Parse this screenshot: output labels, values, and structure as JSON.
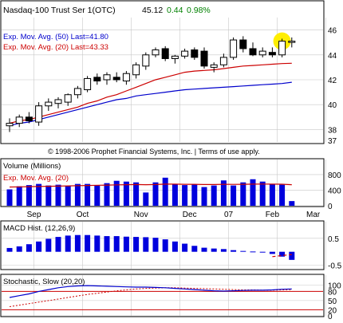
{
  "header": {
    "symbol": "Nasdaq-100 Trust Ser 1(OTC)",
    "last": "45.12",
    "change": "0.44",
    "change_pct": "0.98%",
    "change_color": "#008000"
  },
  "copyright": "© 1998-2006 Prophet Financial Systems, Inc. | Terms of use apply.",
  "colors": {
    "panel_bg": "#ffffff",
    "grid": "#c8c8c8",
    "ema50": "#0000cc",
    "ema20": "#cc0000",
    "volume": "#0000dd",
    "macd": "#0000dd",
    "stoch_k": "#0000cc",
    "stoch_d": "#cc0000",
    "highlight": "#ffee00"
  },
  "chart_data": [
    {
      "type": "candlestick",
      "legend": [
        {
          "label": "Exp. Mov. Avg. (50) Last=41.80",
          "color": "#0000cc"
        },
        {
          "label": "Exp. Mov. Avg. (20) Last=43.33",
          "color": "#cc0000"
        }
      ],
      "ylim": [
        37,
        47
      ],
      "yticks": [
        "38",
        "40",
        "42",
        "44",
        "46"
      ],
      "ytick_values": [
        38,
        40,
        42,
        44,
        46
      ],
      "extra_ytick": "37",
      "candles": [
        {
          "o": 38.3,
          "h": 38.9,
          "l": 37.8,
          "c": 38.5
        },
        {
          "o": 38.5,
          "h": 39.2,
          "l": 38.2,
          "c": 39.0
        },
        {
          "o": 39.0,
          "h": 39.4,
          "l": 38.5,
          "c": 38.7
        },
        {
          "o": 38.6,
          "h": 40.2,
          "l": 38.3,
          "c": 39.9
        },
        {
          "o": 39.9,
          "h": 40.5,
          "l": 39.5,
          "c": 40.2
        },
        {
          "o": 40.1,
          "h": 40.6,
          "l": 39.7,
          "c": 40.4
        },
        {
          "o": 40.2,
          "h": 40.9,
          "l": 39.9,
          "c": 40.8
        },
        {
          "o": 40.8,
          "h": 41.5,
          "l": 40.5,
          "c": 41.3
        },
        {
          "o": 41.2,
          "h": 42.3,
          "l": 41.0,
          "c": 42.1
        },
        {
          "o": 42.2,
          "h": 42.5,
          "l": 41.6,
          "c": 41.9
        },
        {
          "o": 42.0,
          "h": 42.6,
          "l": 41.6,
          "c": 42.4
        },
        {
          "o": 42.2,
          "h": 42.6,
          "l": 41.8,
          "c": 42.0
        },
        {
          "o": 41.9,
          "h": 42.7,
          "l": 41.6,
          "c": 42.5
        },
        {
          "o": 42.4,
          "h": 43.4,
          "l": 42.1,
          "c": 43.2
        },
        {
          "o": 43.1,
          "h": 44.2,
          "l": 42.8,
          "c": 44.0
        },
        {
          "o": 44.0,
          "h": 44.6,
          "l": 43.8,
          "c": 44.4
        },
        {
          "o": 44.5,
          "h": 44.7,
          "l": 43.5,
          "c": 43.7
        },
        {
          "o": 43.7,
          "h": 44.0,
          "l": 43.3,
          "c": 43.9
        },
        {
          "o": 43.9,
          "h": 44.5,
          "l": 43.7,
          "c": 44.3
        },
        {
          "o": 44.4,
          "h": 44.6,
          "l": 43.6,
          "c": 43.8
        },
        {
          "o": 44.3,
          "h": 44.6,
          "l": 42.9,
          "c": 43.1
        },
        {
          "o": 43.0,
          "h": 43.4,
          "l": 42.6,
          "c": 43.2
        },
        {
          "o": 43.2,
          "h": 44.1,
          "l": 43.0,
          "c": 43.8
        },
        {
          "o": 43.8,
          "h": 45.4,
          "l": 43.6,
          "c": 45.2
        },
        {
          "o": 45.2,
          "h": 45.5,
          "l": 44.2,
          "c": 44.5
        },
        {
          "o": 44.5,
          "h": 45.0,
          "l": 43.9,
          "c": 44.0
        },
        {
          "o": 44.0,
          "h": 44.6,
          "l": 43.8,
          "c": 44.3
        },
        {
          "o": 44.2,
          "h": 44.6,
          "l": 43.8,
          "c": 44.0
        },
        {
          "o": 44.0,
          "h": 45.3,
          "l": 43.8,
          "c": 45.1
        },
        {
          "o": 45.1,
          "h": 45.4,
          "l": 44.6,
          "c": 45.1
        }
      ],
      "ema50": [
        38.3,
        38.5,
        38.6,
        38.8,
        39.0,
        39.2,
        39.4,
        39.6,
        39.8,
        40.0,
        40.2,
        40.4,
        40.5,
        40.7,
        40.8,
        40.9,
        41.0,
        41.1,
        41.2,
        41.25,
        41.3,
        41.35,
        41.4,
        41.45,
        41.5,
        41.55,
        41.6,
        41.65,
        41.7,
        41.8
      ],
      "ema20": [
        38.5,
        38.7,
        38.8,
        39.0,
        39.2,
        39.4,
        39.6,
        39.8,
        40.1,
        40.3,
        40.6,
        40.8,
        41.1,
        41.4,
        41.7,
        42.0,
        42.2,
        42.4,
        42.6,
        42.7,
        42.75,
        42.8,
        42.9,
        43.0,
        43.1,
        43.15,
        43.2,
        43.25,
        43.3,
        43.33
      ],
      "highlight_candle_index": 28
    },
    {
      "type": "bar",
      "title": "Volume (Millions)",
      "legend": [
        {
          "label": "Exp. Mov. Avg. (20)",
          "color": "#cc0000"
        }
      ],
      "ylim": [
        0,
        900
      ],
      "yticks": [
        "0",
        "400",
        "800"
      ],
      "ytick_values": [
        0,
        400,
        800
      ],
      "values": [
        420,
        500,
        530,
        560,
        520,
        540,
        510,
        560,
        560,
        520,
        580,
        640,
        620,
        600,
        340,
        600,
        720,
        560,
        530,
        550,
        480,
        520,
        650,
        520,
        600,
        680,
        620,
        560,
        540,
        120
      ],
      "ema": [
        480,
        485,
        490,
        495,
        500,
        505,
        510,
        515,
        520,
        525,
        530,
        535,
        540,
        545,
        540,
        545,
        555,
        555,
        550,
        550,
        545,
        545,
        550,
        548,
        550,
        555,
        556,
        555,
        552,
        540
      ],
      "month_labels": [
        {
          "label": "Sep",
          "index": 2.5
        },
        {
          "label": "Oct",
          "index": 7.5
        },
        {
          "label": "Nov",
          "index": 13.5
        },
        {
          "label": "Dec",
          "index": 18.5
        },
        {
          "label": "07",
          "index": 22.5
        },
        {
          "label": "Feb",
          "index": 27
        },
        {
          "label": "Mar",
          "index": 31.2
        }
      ]
    },
    {
      "type": "bar",
      "title": "MACD Hist. (12,26,9)",
      "ylim": [
        -0.6,
        0.7
      ],
      "yticks": [
        "0.5",
        "-0.5"
      ],
      "ytick_values": [
        0.5,
        -0.5
      ],
      "values": [
        0.14,
        0.2,
        0.28,
        0.38,
        0.48,
        0.55,
        0.6,
        0.62,
        0.62,
        0.6,
        0.58,
        0.58,
        0.56,
        0.55,
        0.54,
        0.52,
        0.46,
        0.38,
        0.3,
        0.22,
        0.15,
        0.12,
        0.1,
        0.06,
        0.03,
        0.01,
        0.0,
        -0.08,
        -0.18,
        -0.3
      ],
      "signal": [
        null,
        null,
        null,
        null,
        null,
        null,
        null,
        null,
        null,
        null,
        null,
        null,
        null,
        null,
        null,
        null,
        null,
        null,
        null,
        null,
        null,
        null,
        null,
        null,
        null,
        null,
        null,
        -0.18,
        -0.14,
        -0.1
      ]
    },
    {
      "type": "line",
      "title": "Stochastic, Slow (20,20)",
      "ylim": [
        0,
        115
      ],
      "yticks": [
        "0",
        "20",
        "50",
        "80",
        "100"
      ],
      "ytick_values": [
        0,
        20,
        50,
        80,
        100
      ],
      "bands": [
        20,
        80
      ],
      "k": [
        60,
        66,
        72,
        80,
        86,
        92,
        96,
        98,
        99,
        98,
        97,
        96,
        95,
        94,
        94,
        93,
        92,
        90,
        88,
        86,
        84,
        82,
        81,
        82,
        83,
        84,
        84,
        85,
        87,
        88
      ],
      "d": [
        30,
        35,
        40,
        45,
        50,
        55,
        60,
        65,
        70,
        74,
        78,
        82,
        85,
        88,
        90,
        91,
        92,
        92,
        91,
        90,
        89,
        88,
        87,
        86,
        85,
        85,
        84,
        84,
        85,
        86
      ]
    }
  ]
}
